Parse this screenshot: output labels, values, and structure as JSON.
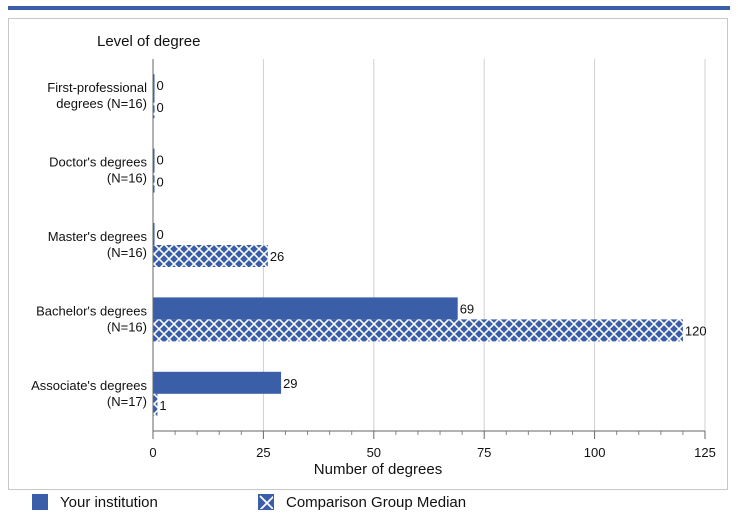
{
  "chart_data": {
    "type": "bar",
    "orientation": "horizontal",
    "ylabel": "Level of degree",
    "xlabel": "Number of degrees",
    "xlim": [
      0,
      125
    ],
    "xticks": [
      0,
      25,
      50,
      75,
      100,
      125
    ],
    "grid": true,
    "legend_position": "bottom",
    "categories": [
      [
        "First-professional",
        "degrees (N=16)"
      ],
      [
        "Doctor's degrees",
        "(N=16)"
      ],
      [
        "Master's degrees",
        "(N=16)"
      ],
      [
        "Bachelor's degrees",
        "(N=16)"
      ],
      [
        "Associate's degrees",
        "(N=17)"
      ]
    ],
    "series": [
      {
        "name": "Your institution",
        "values": [
          0,
          0,
          0,
          69,
          29
        ],
        "pattern": "solid",
        "color": "#3a5ea8"
      },
      {
        "name": "Comparison Group Median",
        "values": [
          0,
          0,
          26,
          120,
          1
        ],
        "pattern": "crosshatch",
        "color": "#3a5ea8"
      }
    ]
  },
  "legend": {
    "items": [
      {
        "label": "Your institution"
      },
      {
        "label": "Comparison Group Median"
      }
    ]
  }
}
